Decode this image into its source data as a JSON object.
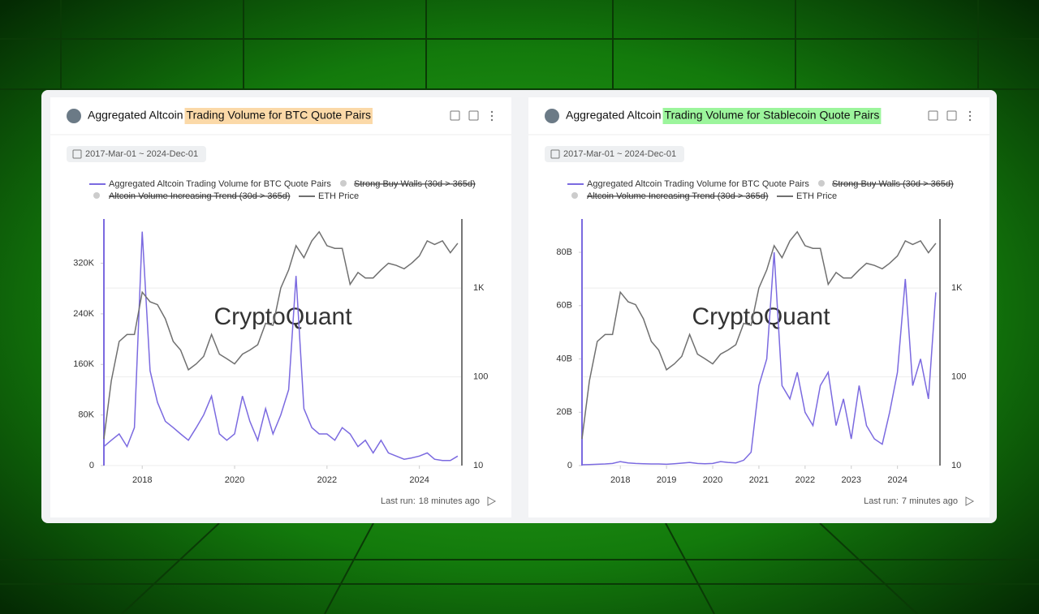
{
  "chart_data": [
    {
      "type": "line",
      "title_parts": [
        "Aggregated Altcoin",
        "Trading Volume for BTC Quote Pairs"
      ],
      "highlight_color": "#fbd9a8",
      "date_range": "2017-Mar-01 ~ 2024-Dec-01",
      "inactive_series": [
        "Strong Buy Walls (30d > 365d)",
        "Altcoin Volume Increasing Trend (30d > 365d)"
      ],
      "watermark": "CryptoQuant",
      "last_run_label": "Last run:",
      "last_run": "18 minutes ago",
      "x": [
        2017.17,
        2017.33,
        2017.5,
        2017.67,
        2017.83,
        2018.0,
        2018.17,
        2018.33,
        2018.5,
        2018.67,
        2018.83,
        2019.0,
        2019.17,
        2019.33,
        2019.5,
        2019.67,
        2019.83,
        2020.0,
        2020.17,
        2020.33,
        2020.5,
        2020.67,
        2020.83,
        2021.0,
        2021.17,
        2021.33,
        2021.5,
        2021.67,
        2021.83,
        2022.0,
        2022.17,
        2022.33,
        2022.5,
        2022.67,
        2022.83,
        2023.0,
        2023.17,
        2023.33,
        2023.5,
        2023.67,
        2023.83,
        2024.0,
        2024.17,
        2024.33,
        2024.5,
        2024.67,
        2024.83
      ],
      "xlim": [
        2017.17,
        2024.92
      ],
      "xticks": [
        2018,
        2020,
        2022,
        2024
      ],
      "ylim": [
        0,
        390000
      ],
      "yticks": [
        0,
        {
          "value": 80000,
          "label": "80K"
        },
        {
          "value": 160000,
          "label": "160K"
        },
        {
          "value": 240000,
          "label": "240K"
        },
        {
          "value": 320000,
          "label": "320K"
        }
      ],
      "y2lim": [
        10,
        6000
      ],
      "y2ticks": [
        10,
        100,
        {
          "value": 1000,
          "label": "1K"
        }
      ],
      "y2_log": true,
      "grid": true,
      "series": [
        {
          "name": "Aggregated Altcoin Trading Volume for BTC Quote Pairs",
          "color": "#7b6ae0",
          "values": [
            30000,
            40000,
            50000,
            30000,
            60000,
            370000,
            150000,
            100000,
            70000,
            60000,
            50000,
            40000,
            60000,
            80000,
            110000,
            50000,
            40000,
            50000,
            110000,
            70000,
            40000,
            90000,
            50000,
            80000,
            120000,
            300000,
            90000,
            60000,
            50000,
            50000,
            40000,
            60000,
            50000,
            30000,
            40000,
            20000,
            40000,
            20000,
            15000,
            10000,
            12000,
            15000,
            20000,
            10000,
            8000,
            8000,
            15000
          ]
        },
        {
          "name": "ETH Price",
          "color": "#707070",
          "axis": "y2",
          "values": [
            20,
            90,
            250,
            300,
            300,
            900,
            700,
            650,
            450,
            250,
            200,
            120,
            140,
            170,
            300,
            180,
            160,
            140,
            180,
            200,
            230,
            400,
            380,
            1000,
            1600,
            3000,
            2200,
            3400,
            4300,
            3000,
            2800,
            2800,
            1100,
            1500,
            1300,
            1300,
            1600,
            1900,
            1800,
            1650,
            1900,
            2300,
            3400,
            3100,
            3400,
            2500,
            3200
          ]
        }
      ]
    },
    {
      "type": "line",
      "title_parts": [
        "Aggregated Altcoin",
        "Trading Volume for Stablecoin Quote Pairs"
      ],
      "highlight_color": "#9cf59c",
      "date_range": "2017-Mar-01 ~ 2024-Dec-01",
      "inactive_series": [
        "Strong Buy Walls (30d > 365d)",
        "Altcoin Volume Increasing Trend (30d > 365d)"
      ],
      "watermark": "CryptoQuant",
      "last_run_label": "Last run:",
      "last_run": "7 minutes ago",
      "x": [
        2017.17,
        2017.33,
        2017.5,
        2017.67,
        2017.83,
        2018.0,
        2018.17,
        2018.33,
        2018.5,
        2018.67,
        2018.83,
        2019.0,
        2019.17,
        2019.33,
        2019.5,
        2019.67,
        2019.83,
        2020.0,
        2020.17,
        2020.33,
        2020.5,
        2020.67,
        2020.83,
        2021.0,
        2021.17,
        2021.33,
        2021.5,
        2021.67,
        2021.83,
        2022.0,
        2022.17,
        2022.33,
        2022.5,
        2022.67,
        2022.83,
        2023.0,
        2023.17,
        2023.33,
        2023.5,
        2023.67,
        2023.83,
        2024.0,
        2024.17,
        2024.33,
        2024.5,
        2024.67,
        2024.83
      ],
      "xlim": [
        2017.17,
        2024.92
      ],
      "xticks": [
        2018,
        2019,
        2020,
        2021,
        2022,
        2023,
        2024
      ],
      "ylim": [
        0,
        92500000000
      ],
      "yticks": [
        0,
        {
          "value": 20000000000,
          "label": "20B"
        },
        {
          "value": 40000000000,
          "label": "40B"
        },
        {
          "value": 60000000000,
          "label": "60B"
        },
        {
          "value": 80000000000,
          "label": "80B"
        }
      ],
      "y2lim": [
        10,
        6000
      ],
      "y2ticks": [
        10,
        100,
        {
          "value": 1000,
          "label": "1K"
        }
      ],
      "y2_log": true,
      "grid": true,
      "series": [
        {
          "name": "Aggregated Altcoin Trading Volume for BTC Quote Pairs",
          "color": "#7b6ae0",
          "values": [
            300000000.0,
            400000000.0,
            500000000.0,
            600000000.0,
            800000000.0,
            1500000000.0,
            1000000000.0,
            800000000.0,
            700000000.0,
            600000000.0,
            600000000.0,
            500000000.0,
            700000000.0,
            900000000.0,
            1200000000.0,
            800000000.0,
            700000000.0,
            800000000.0,
            1500000000.0,
            1200000000.0,
            1000000000.0,
            2000000000.0,
            5000000000.0,
            30000000000.0,
            40000000000.0,
            80000000000.0,
            30000000000.0,
            25000000000.0,
            35000000000.0,
            20000000000.0,
            15000000000.0,
            30000000000.0,
            35000000000.0,
            15000000000.0,
            25000000000.0,
            10000000000.0,
            30000000000.0,
            15000000000.0,
            10000000000.0,
            8000000000.0,
            20000000000.0,
            35000000000.0,
            70000000000.0,
            30000000000.0,
            40000000000.0,
            25000000000.0,
            65000000000.0
          ]
        },
        {
          "name": "ETH Price",
          "color": "#707070",
          "axis": "y2",
          "values": [
            20,
            90,
            250,
            300,
            300,
            900,
            700,
            650,
            450,
            250,
            200,
            120,
            140,
            170,
            300,
            180,
            160,
            140,
            180,
            200,
            230,
            400,
            380,
            1000,
            1600,
            3000,
            2200,
            3400,
            4300,
            3000,
            2800,
            2800,
            1100,
            1500,
            1300,
            1300,
            1600,
            1900,
            1800,
            1650,
            1900,
            2300,
            3400,
            3100,
            3400,
            2500,
            3200
          ]
        }
      ]
    }
  ]
}
